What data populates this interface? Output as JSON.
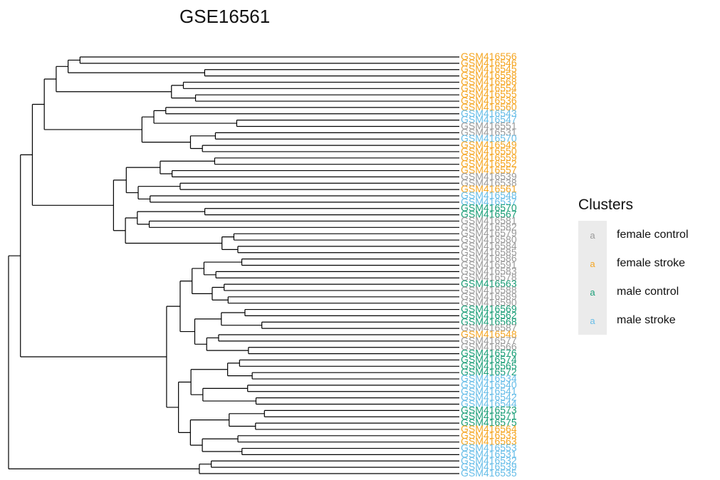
{
  "chart_data": {
    "type": "dendrogram",
    "title": "GSE16561",
    "legend": {
      "title": "Clusters",
      "placement": "right",
      "key_glyph": "a",
      "entries": [
        {
          "name": "female control",
          "color": "#999999"
        },
        {
          "name": "female stroke",
          "color": "#f5a623"
        },
        {
          "name": "male control",
          "color": "#1a9e77"
        },
        {
          "name": "male stroke",
          "color": "#66bde8"
        }
      ]
    },
    "leaves": [
      {
        "label": "GSM416556",
        "group": "female stroke"
      },
      {
        "label": "GSM416546",
        "group": "female stroke"
      },
      {
        "label": "GSM416545",
        "group": "female stroke"
      },
      {
        "label": "GSM416558",
        "group": "female stroke"
      },
      {
        "label": "GSM416568",
        "group": "female stroke"
      },
      {
        "label": "GSM416554",
        "group": "female stroke"
      },
      {
        "label": "GSM416555",
        "group": "female stroke"
      },
      {
        "label": "GSM416536",
        "group": "female stroke"
      },
      {
        "label": "GSM416560",
        "group": "female stroke"
      },
      {
        "label": "GSM416543",
        "group": "male stroke"
      },
      {
        "label": "GSM416547",
        "group": "male stroke"
      },
      {
        "label": "GSM416551",
        "group": "female control"
      },
      {
        "label": "GSM416531",
        "group": "female control"
      },
      {
        "label": "GSM416570",
        "group": "male stroke"
      },
      {
        "label": "GSM416549",
        "group": "female stroke"
      },
      {
        "label": "GSM416550",
        "group": "female stroke"
      },
      {
        "label": "GSM416559",
        "group": "female stroke"
      },
      {
        "label": "GSM416552",
        "group": "female stroke"
      },
      {
        "label": "GSM416557",
        "group": "female stroke"
      },
      {
        "label": "GSM416539",
        "group": "female control"
      },
      {
        "label": "GSM416538",
        "group": "female control"
      },
      {
        "label": "GSM416561",
        "group": "female stroke"
      },
      {
        "label": "GSM416548",
        "group": "male stroke"
      },
      {
        "label": "GSM416537",
        "group": "male stroke"
      },
      {
        "label": "GSM416570",
        "group": "male control"
      },
      {
        "label": "GSM416567",
        "group": "male control"
      },
      {
        "label": "GSM416581",
        "group": "female control"
      },
      {
        "label": "GSM416582",
        "group": "female control"
      },
      {
        "label": "GSM416579",
        "group": "female control"
      },
      {
        "label": "GSM416580",
        "group": "female control"
      },
      {
        "label": "GSM416584",
        "group": "female control"
      },
      {
        "label": "GSM416585",
        "group": "female control"
      },
      {
        "label": "GSM416586",
        "group": "female control"
      },
      {
        "label": "GSM416591",
        "group": "female control"
      },
      {
        "label": "GSM416583",
        "group": "female control"
      },
      {
        "label": "GSM416578",
        "group": "female control"
      },
      {
        "label": "GSM416563",
        "group": "male control"
      },
      {
        "label": "GSM416588",
        "group": "female control"
      },
      {
        "label": "GSM416589",
        "group": "female control"
      },
      {
        "label": "GSM416590",
        "group": "female control"
      },
      {
        "label": "GSM416569",
        "group": "male control"
      },
      {
        "label": "GSM416562",
        "group": "male control"
      },
      {
        "label": "GSM416568",
        "group": "male control"
      },
      {
        "label": "GSM416587",
        "group": "female control"
      },
      {
        "label": "GSM416548",
        "group": "female stroke"
      },
      {
        "label": "GSM416577",
        "group": "female control"
      },
      {
        "label": "GSM416566",
        "group": "female control"
      },
      {
        "label": "GSM416576",
        "group": "male control"
      },
      {
        "label": "GSM416574",
        "group": "male control"
      },
      {
        "label": "GSM416565",
        "group": "male control"
      },
      {
        "label": "GSM416572",
        "group": "male control"
      },
      {
        "label": "GSM416534",
        "group": "male stroke"
      },
      {
        "label": "GSM416540",
        "group": "male stroke"
      },
      {
        "label": "GSM416541",
        "group": "male stroke"
      },
      {
        "label": "GSM416542",
        "group": "male stroke"
      },
      {
        "label": "GSM416544",
        "group": "male stroke"
      },
      {
        "label": "GSM416573",
        "group": "male control"
      },
      {
        "label": "GSM416571",
        "group": "male control"
      },
      {
        "label": "GSM416575",
        "group": "male control"
      },
      {
        "label": "GSM416564",
        "group": "female stroke"
      },
      {
        "label": "GSM416533",
        "group": "female stroke"
      },
      {
        "label": "GSM416563",
        "group": "female stroke"
      },
      {
        "label": "GSM416553",
        "group": "male stroke"
      },
      {
        "label": "GSM416531",
        "group": "male stroke"
      },
      {
        "label": "GSM416532",
        "group": "male stroke"
      },
      {
        "label": "GSM416539",
        "group": "male stroke"
      },
      {
        "label": "GSM416535",
        "group": "male stroke"
      }
    ],
    "merges": [
      [
        0,
        1,
        0.91
      ],
      [
        2,
        3,
        0.61
      ],
      [
        4,
        5,
        0.66
      ],
      [
        6,
        7,
        0.63
      ],
      [
        8,
        9,
        0.7
      ],
      [
        10,
        11,
        0.53
      ],
      [
        12,
        13,
        0.58
      ],
      [
        14,
        15,
        0.61
      ],
      [
        16,
        17,
        0.58
      ],
      [
        18,
        19,
        0.68
      ],
      [
        20,
        21,
        0.66
      ],
      [
        22,
        23,
        0.73
      ],
      [
        24,
        25,
        0.6
      ],
      [
        26,
        27,
        0.73
      ],
      [
        28,
        29,
        0.53
      ],
      [
        30,
        31,
        0.52
      ],
      [
        32,
        33,
        0.51
      ],
      [
        34,
        35,
        0.57
      ],
      [
        36,
        37,
        0.55
      ],
      [
        38,
        39,
        0.54
      ],
      [
        40,
        41,
        0.5
      ],
      [
        42,
        43,
        0.46
      ],
      [
        44,
        45,
        0.56
      ],
      [
        46,
        47,
        0.49
      ],
      [
        48,
        49,
        0.51
      ],
      [
        50,
        51,
        0.48
      ],
      [
        52,
        53,
        0.49
      ],
      [
        54,
        55,
        0.47
      ],
      [
        56,
        57,
        0.45
      ],
      [
        58,
        59,
        0.47
      ],
      [
        60,
        61,
        0.51
      ],
      [
        62,
        63,
        0.5
      ],
      [
        64,
        65,
        0.57
      ],
      [
        66,
        67,
        0.57
      ],
      [
        68,
        69,
        0.5
      ],
      [
        70,
        71,
        0.51
      ],
      [
        72,
        73,
        0.47
      ],
      [
        74,
        75,
        0.54
      ],
      [
        76,
        77,
        0.49
      ],
      [
        78,
        79,
        0.45
      ],
      [
        80,
        81,
        0.49
      ],
      [
        82,
        83,
        0.48
      ],
      [
        84,
        85,
        0.46
      ],
      [
        86,
        87,
        0.54
      ],
      [
        88,
        89,
        0.5
      ],
      [
        90,
        91,
        0.52
      ],
      [
        92,
        93,
        0.58
      ],
      [
        94,
        95,
        0.52
      ],
      [
        96,
        97,
        0.58
      ],
      [
        98,
        99,
        0.51
      ],
      [
        100,
        101,
        0.45
      ],
      [
        102,
        103,
        0.53
      ],
      [
        104,
        105,
        0.52
      ],
      [
        106,
        107,
        0.5
      ],
      [
        108,
        109,
        0.55
      ],
      [
        110,
        111,
        0.47
      ],
      [
        112,
        113,
        0.53
      ],
      [
        114,
        115,
        0.53
      ],
      [
        116,
        117,
        0.41
      ],
      [
        118,
        119,
        0.43
      ],
      [
        120,
        121,
        0.47
      ],
      [
        122,
        123,
        0.44
      ],
      [
        124,
        125,
        0.5
      ],
      [
        126,
        127,
        0.58
      ],
      [
        128,
        129,
        0.6
      ],
      [
        130,
        131,
        0.75
      ]
    ],
    "xlabel": "",
    "ylabel": ""
  }
}
